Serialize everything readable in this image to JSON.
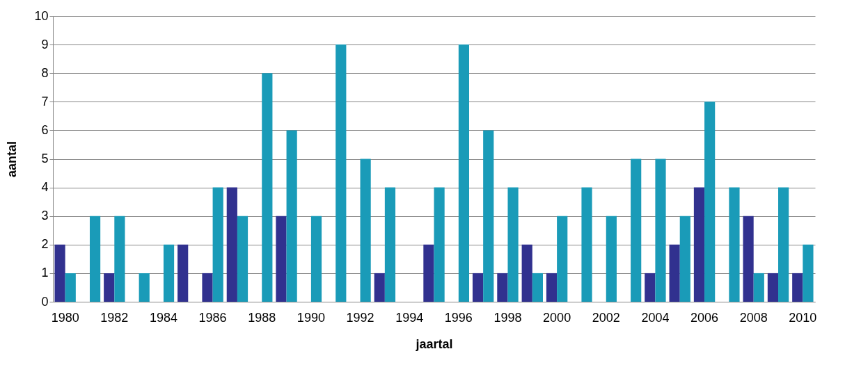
{
  "chart_data": {
    "type": "bar",
    "xlabel": "jaartal",
    "ylabel": "aantal",
    "categories": [
      "1980",
      null,
      "1982",
      null,
      "1984",
      null,
      "1986",
      null,
      "1988",
      null,
      "1990",
      null,
      "1992",
      null,
      "1994",
      null,
      "1996",
      null,
      "1998",
      null,
      "2000",
      null,
      "2002",
      null,
      "2004",
      null,
      "2006",
      null,
      "2008",
      null,
      "2010"
    ],
    "series": [
      {
        "color": "#31318f",
        "values": [
          2,
          0,
          1,
          0,
          0,
          2,
          1,
          4,
          0,
          3,
          0,
          0,
          0,
          1,
          0,
          2,
          0,
          1,
          1,
          2,
          1,
          0,
          0,
          0,
          1,
          2,
          4,
          0,
          3,
          1,
          1
        ]
      },
      {
        "color": "#1a9bb8",
        "values": [
          1,
          3,
          3,
          1,
          2,
          0,
          4,
          3,
          8,
          6,
          3,
          9,
          5,
          4,
          0,
          4,
          9,
          6,
          4,
          1,
          3,
          4,
          3,
          5,
          5,
          3,
          7,
          4,
          1,
          4,
          2
        ]
      }
    ],
    "ylim": [
      0,
      10
    ],
    "yticks": [
      0,
      1,
      2,
      3,
      4,
      5,
      6,
      7,
      8,
      9,
      10
    ],
    "grid": "y",
    "legend": false
  }
}
